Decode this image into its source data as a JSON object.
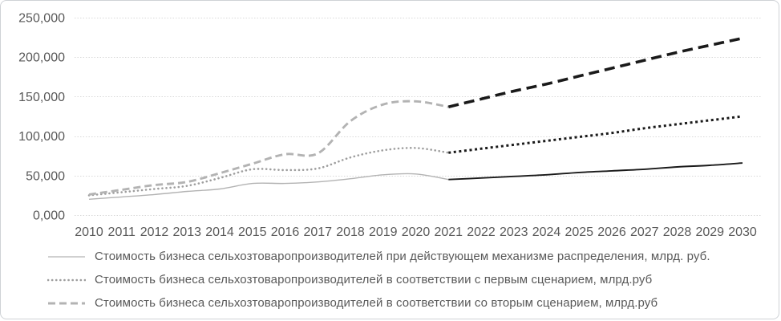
{
  "chart_data": {
    "type": "line",
    "title": "",
    "xlabel": "",
    "ylabel": "",
    "ylim": [
      0,
      250000
    ],
    "grid": true,
    "legend_position": "bottom",
    "y_ticks": [
      {
        "value": 0,
        "label": "0,000"
      },
      {
        "value": 50000,
        "label": "50,000"
      },
      {
        "value": 100000,
        "label": "100,000"
      },
      {
        "value": 150000,
        "label": "150,000"
      },
      {
        "value": 200000,
        "label": "200,000"
      },
      {
        "value": 250000,
        "label": "250,000"
      }
    ],
    "x_years": [
      2010,
      2011,
      2012,
      2013,
      2014,
      2015,
      2016,
      2017,
      2018,
      2019,
      2020,
      2021,
      2022,
      2023,
      2024,
      2025,
      2026,
      2027,
      2028,
      2029,
      2030
    ],
    "series": [
      {
        "name": "Стоимость бизнеса сельхозтоваропроизводителей при действующем механизме распределения, млрд. руб.",
        "style": "solid",
        "historical_color": "#b3b3b3",
        "forecast_color": "#1a1a1a",
        "historical": {
          "years": [
            2010,
            2011,
            2012,
            2013,
            2014,
            2015,
            2016,
            2017,
            2018,
            2019,
            2020,
            2021
          ],
          "values": [
            20000,
            23000,
            26000,
            30000,
            33000,
            40000,
            40000,
            42000,
            46000,
            51000,
            52000,
            45000
          ]
        },
        "forecast": {
          "years": [
            2021,
            2022,
            2023,
            2024,
            2025,
            2026,
            2027,
            2028,
            2029,
            2030
          ],
          "values": [
            45000,
            47000,
            49000,
            51000,
            54000,
            56000,
            58000,
            61000,
            63000,
            66000
          ]
        }
      },
      {
        "name": "Стоимость бизнеса сельхозтоваропроизводителей в соответствии с первым сценарием, млрд.руб",
        "style": "dotted",
        "historical_color": "#9e9e9e",
        "forecast_color": "#1a1a1a",
        "historical": {
          "years": [
            2010,
            2011,
            2012,
            2013,
            2014,
            2015,
            2016,
            2017,
            2018,
            2019,
            2020,
            2021
          ],
          "values": [
            25000,
            29000,
            33000,
            37000,
            47000,
            58000,
            57000,
            59000,
            73000,
            82000,
            85000,
            79000
          ]
        },
        "forecast": {
          "years": [
            2021,
            2022,
            2023,
            2024,
            2025,
            2026,
            2027,
            2028,
            2029,
            2030
          ],
          "values": [
            79000,
            84000,
            89000,
            94000,
            99000,
            104000,
            110000,
            115000,
            120000,
            125000
          ]
        }
      },
      {
        "name": "Стоимость бизнеса сельхозтоваропроизводителей в соответствии со вторым сценарием, млрд.руб",
        "style": "dashed",
        "historical_color": "#b3b3b3",
        "forecast_color": "#1a1a1a",
        "historical": {
          "years": [
            2010,
            2011,
            2012,
            2013,
            2014,
            2015,
            2016,
            2017,
            2018,
            2019,
            2020,
            2021
          ],
          "values": [
            26000,
            32000,
            38000,
            42000,
            53000,
            65000,
            77000,
            78000,
            119000,
            140000,
            144000,
            137000
          ]
        },
        "forecast": {
          "years": [
            2021,
            2022,
            2023,
            2024,
            2025,
            2026,
            2027,
            2028,
            2029,
            2030
          ],
          "values": [
            137000,
            147000,
            157000,
            166000,
            176000,
            186000,
            196000,
            206000,
            215000,
            224000
          ]
        }
      }
    ],
    "colors": {
      "grid": "#d8d8d8",
      "axis_text": "#595959",
      "legend_text": "#595959",
      "frame_border": "#cfd2d6"
    }
  }
}
